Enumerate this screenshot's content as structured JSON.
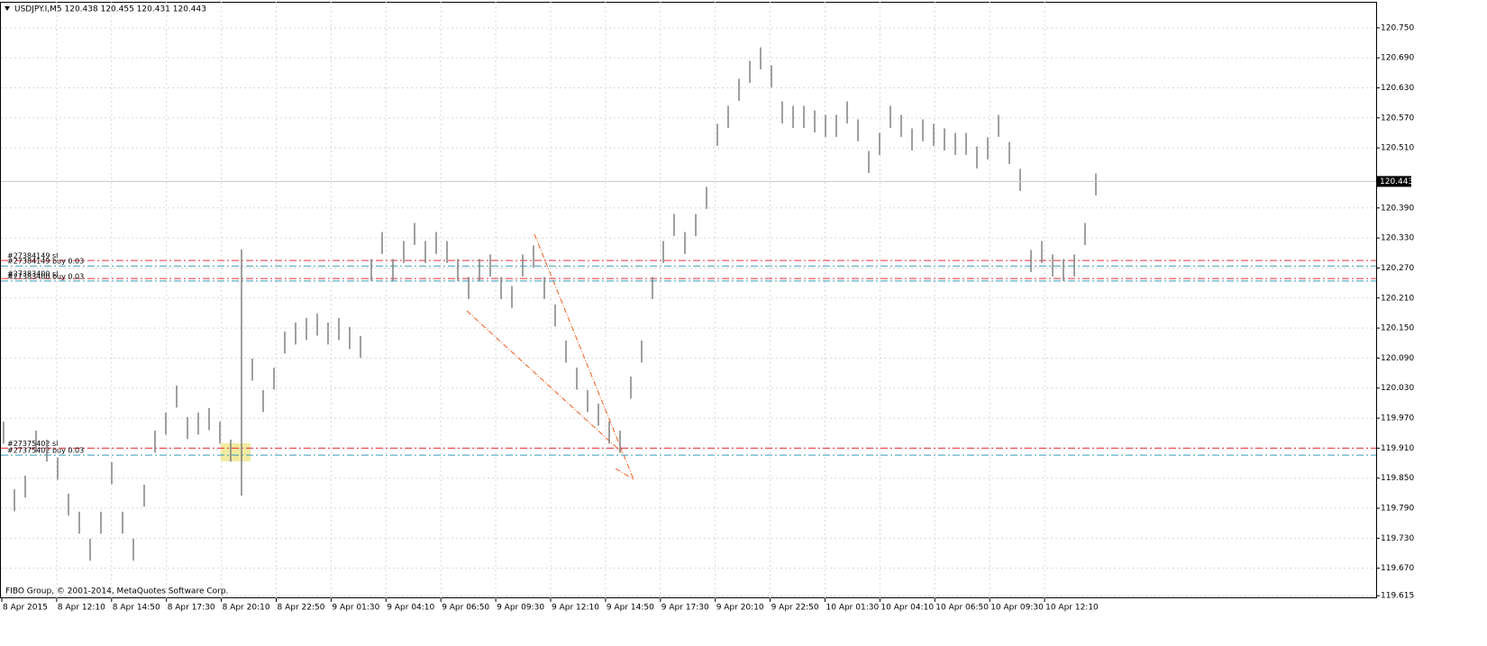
{
  "chart_data": {
    "type": "ohlc",
    "title": "USDJPY.I,M5  120.438 120.455 120.431 120.443",
    "footer": "FIBO Group, © 2001-2014, MetaQuotes Software Corp.",
    "color": "#808080",
    "grid": true,
    "ylim": [
      119.61,
      120.802
    ],
    "yticks": [
      {
        "value": 120.75,
        "label": "120.750"
      },
      {
        "value": 120.69,
        "label": "120.690"
      },
      {
        "value": 120.63,
        "label": "120.630"
      },
      {
        "value": 120.57,
        "label": "120.570"
      },
      {
        "value": 120.51,
        "label": "120.510"
      },
      {
        "value": 120.39,
        "label": "120.390"
      },
      {
        "value": 120.33,
        "label": "120.330"
      },
      {
        "value": 120.27,
        "label": "120.270"
      },
      {
        "value": 120.21,
        "label": "120.210"
      },
      {
        "value": 120.15,
        "label": "120.150"
      },
      {
        "value": 120.09,
        "label": "120.090"
      },
      {
        "value": 120.03,
        "label": "120.030"
      },
      {
        "value": 119.97,
        "label": "119.970"
      },
      {
        "value": 119.91,
        "label": "119.910"
      },
      {
        "value": 119.85,
        "label": "119.850"
      },
      {
        "value": 119.79,
        "label": "119.790"
      },
      {
        "value": 119.73,
        "label": "119.730"
      },
      {
        "value": 119.67,
        "label": "119.670"
      },
      {
        "value": 119.615,
        "label": "119.615"
      }
    ],
    "xlabels": [
      "8 Apr 2015",
      "8 Apr 12:10",
      "8 Apr 14:50",
      "8 Apr 17:30",
      "8 Apr 20:10",
      "8 Apr 22:50",
      "9 Apr 01:30",
      "9 Apr 04:10",
      "9 Apr 06:50",
      "9 Apr 09:30",
      "9 Apr 12:10",
      "9 Apr 14:50",
      "9 Apr 17:30",
      "9 Apr 20:10",
      "9 Apr 22:50",
      "10 Apr 01:30",
      "10 Apr 04:10",
      "10 Apr 06:50",
      "10 Apr 09:30",
      "10 Apr 12:10"
    ],
    "current_price": {
      "value": 120.443,
      "label": "120.443"
    },
    "levels": [
      {
        "label": "#27384149 sl",
        "value": 120.285,
        "color": "#e8303c"
      },
      {
        "label": "#27384149 buy 0.03",
        "value": 120.274,
        "color": "#3a9ab8"
      },
      {
        "label": "#27383400 sl",
        "value": 120.249,
        "color": "#e8303c"
      },
      {
        "label": "#27383400 buy 0.03",
        "value": 120.244,
        "color": "#3a9ab8"
      },
      {
        "label": "#27375402 sl",
        "value": 119.91,
        "color": "#e8303c"
      },
      {
        "label": "#27375402 buy 0.03",
        "value": 119.896,
        "color": "#3a9ab8"
      }
    ],
    "high": [
      119.963,
      119.828,
      119.855,
      119.945,
      119.927,
      119.891,
      119.819,
      119.783,
      119.729,
      119.783,
      119.882,
      119.783,
      119.729,
      119.837,
      119.945,
      119.981,
      120.035,
      119.972,
      119.981,
      119.99,
      119.963,
      119.927,
      120.307,
      120.089,
      120.026,
      120.071,
      120.143,
      120.161,
      120.17,
      120.179,
      120.161,
      120.17,
      120.152,
      120.134,
      120.288,
      120.342,
      120.288,
      120.324,
      120.36,
      120.324,
      120.342,
      120.324,
      120.288,
      120.252,
      120.288,
      120.297,
      120.252,
      120.234,
      120.297,
      120.315,
      120.252,
      120.197,
      120.125,
      120.071,
      120.026,
      119.999,
      119.963,
      119.945,
      120.053,
      120.125,
      120.252,
      120.324,
      120.378,
      120.342,
      120.378,
      120.432,
      120.558,
      120.594,
      120.648,
      120.684,
      120.711,
      120.675,
      120.603,
      120.594,
      120.594,
      120.585,
      120.576,
      120.576,
      120.603,
      120.567,
      120.504,
      120.54,
      120.594,
      120.576,
      120.549,
      120.567,
      120.558,
      120.549,
      120.54,
      120.54,
      120.513,
      120.531,
      120.576,
      120.522,
      120.468,
      120.306,
      120.324,
      120.297,
      120.288,
      120.297,
      120.36,
      120.459
    ],
    "low": [
      119.919,
      119.784,
      119.811,
      119.901,
      119.883,
      119.847,
      119.775,
      119.739,
      119.685,
      119.739,
      119.838,
      119.739,
      119.685,
      119.793,
      119.901,
      119.937,
      119.991,
      119.928,
      119.937,
      119.946,
      119.919,
      119.883,
      119.815,
      120.045,
      119.982,
      120.027,
      120.099,
      120.117,
      120.126,
      120.135,
      120.117,
      120.126,
      120.108,
      120.09,
      120.244,
      120.298,
      120.244,
      120.28,
      120.316,
      120.28,
      120.298,
      120.28,
      120.244,
      120.208,
      120.244,
      120.253,
      120.208,
      120.19,
      120.253,
      120.271,
      120.208,
      120.153,
      120.081,
      120.027,
      119.982,
      119.955,
      119.919,
      119.901,
      120.009,
      120.081,
      120.208,
      120.28,
      120.334,
      120.298,
      120.334,
      120.388,
      120.514,
      120.55,
      120.604,
      120.64,
      120.667,
      120.631,
      120.559,
      120.55,
      120.55,
      120.541,
      120.532,
      120.532,
      120.559,
      120.523,
      120.46,
      120.496,
      120.55,
      120.532,
      120.505,
      120.523,
      120.514,
      120.505,
      120.496,
      120.496,
      120.469,
      120.487,
      120.532,
      120.478,
      120.424,
      120.262,
      120.28,
      120.253,
      120.244,
      120.253,
      120.316,
      120.415
    ]
  }
}
